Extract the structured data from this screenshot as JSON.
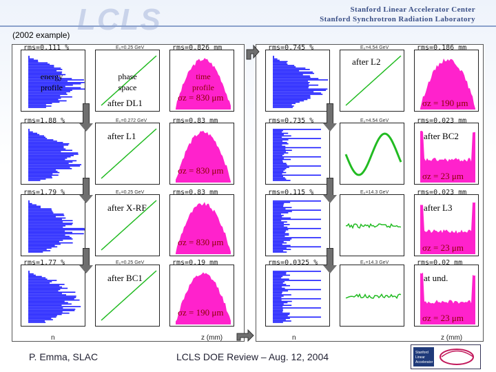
{
  "header": {
    "logo_text": "LCLS",
    "institution_1": "Stanford Linear Accelerator Center",
    "institution_2": "Stanford Synchrotron Radiation Laboratory",
    "year_note": "(2002 example)"
  },
  "stages": [
    {
      "label": "after DL1",
      "rms": [
        "rms=0.111 %",
        "rms=0.826 mm"
      ],
      "ebeam": "E₀=0.25 GeV",
      "sigma": "σz = 830 μm"
    },
    {
      "label": "after L1",
      "rms": [
        "rms=1.88 %",
        "rms=0.83 mm"
      ],
      "ebeam": "E₀=0.272 GeV",
      "sigma": "σz = 830 μm"
    },
    {
      "label": "after X-RF",
      "rms": [
        "rms=1.79 %",
        "rms=0.83 mm"
      ],
      "ebeam": "E₀=0.25 GeV",
      "sigma": "σz = 830 μm"
    },
    {
      "label": "after BC1",
      "rms": [
        "rms=1.77 %",
        "rms=0.19 mm"
      ],
      "ebeam": "E₀=0.25 GeV",
      "sigma": "σz = 190 μm"
    },
    {
      "label": "after L2",
      "rms": [
        "rms=0.745 %",
        "rms=0.186 mm"
      ],
      "ebeam": "E₀=4.54 GeV",
      "sigma": "σz = 190 μm"
    },
    {
      "label": "after BC2",
      "rms": [
        "rms=0.735 %",
        "rms=0.023 mm"
      ],
      "ebeam": "E₀=4.54 GeV",
      "sigma": "σz = 23 μm"
    },
    {
      "label": "after L3",
      "rms": [
        "rms=0.115 %",
        "rms=0.023 mm"
      ],
      "ebeam": "E₀=14.3 GeV",
      "sigma": "σz = 23 μm"
    },
    {
      "label": "at und.",
      "rms": [
        "rms=0.0325 %",
        "rms=0.02 mm"
      ],
      "ebeam": "E₀=14.3 GeV",
      "sigma": "σz = 23 μm"
    }
  ],
  "legend": {
    "energy_profile": "energy profile",
    "phase_space": "phase space",
    "time_profile": "time profile"
  },
  "axis_labels": {
    "n": "n",
    "z_mm": "z (mm)"
  },
  "footer": {
    "author": "P. Emma, SLAC",
    "title": "LCLS DOE Review – Aug. 12, 2004"
  },
  "colors": {
    "histogram": "#1a1aff",
    "phase": "#22bb22",
    "time": "#ff22cc",
    "arrow": "#6f6f6f",
    "brand": "#3a4f86"
  },
  "icons": {
    "down_arrow": "down-arrow-icon",
    "corner_arrow": "corner-arrow-icon",
    "slac_logo": "slac-logo-icon"
  }
}
